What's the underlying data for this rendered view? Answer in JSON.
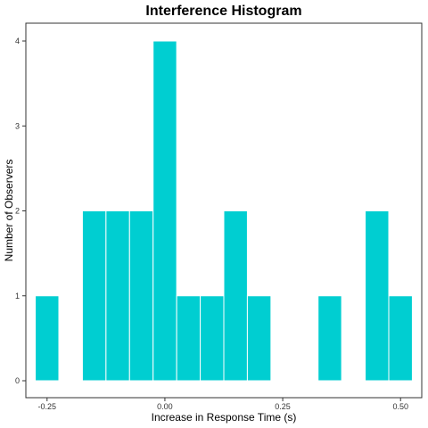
{
  "chart_data": {
    "type": "bar",
    "title": "Interference Histogram",
    "xlabel": "Increase in Response Time (s)",
    "ylabel": "Number of Observers",
    "bin_width": 0.05,
    "bins": [
      {
        "center": -0.25,
        "count": 1
      },
      {
        "center": -0.2,
        "count": 0
      },
      {
        "center": -0.15,
        "count": 2
      },
      {
        "center": -0.1,
        "count": 2
      },
      {
        "center": -0.05,
        "count": 2
      },
      {
        "center": 0.0,
        "count": 4
      },
      {
        "center": 0.05,
        "count": 1
      },
      {
        "center": 0.1,
        "count": 1
      },
      {
        "center": 0.15,
        "count": 2
      },
      {
        "center": 0.2,
        "count": 1
      },
      {
        "center": 0.25,
        "count": 0
      },
      {
        "center": 0.3,
        "count": 0
      },
      {
        "center": 0.35,
        "count": 1
      },
      {
        "center": 0.4,
        "count": 0
      },
      {
        "center": 0.45,
        "count": 2
      },
      {
        "center": 0.5,
        "count": 1
      }
    ],
    "xlim": [
      -0.295,
      0.545
    ],
    "ylim": [
      0,
      4.2
    ],
    "x_ticks": [
      -0.25,
      0.0,
      0.25,
      0.5
    ],
    "x_tick_labels": [
      "-0.25",
      "0.00",
      "0.25",
      "0.50"
    ],
    "y_ticks": [
      0,
      1,
      2,
      3,
      4
    ],
    "y_tick_labels": [
      "0",
      "1",
      "2",
      "3",
      "4"
    ],
    "bar_color": "#00CED1",
    "bar_edge_color": "#ffffff",
    "grid": false,
    "legend": "none"
  }
}
